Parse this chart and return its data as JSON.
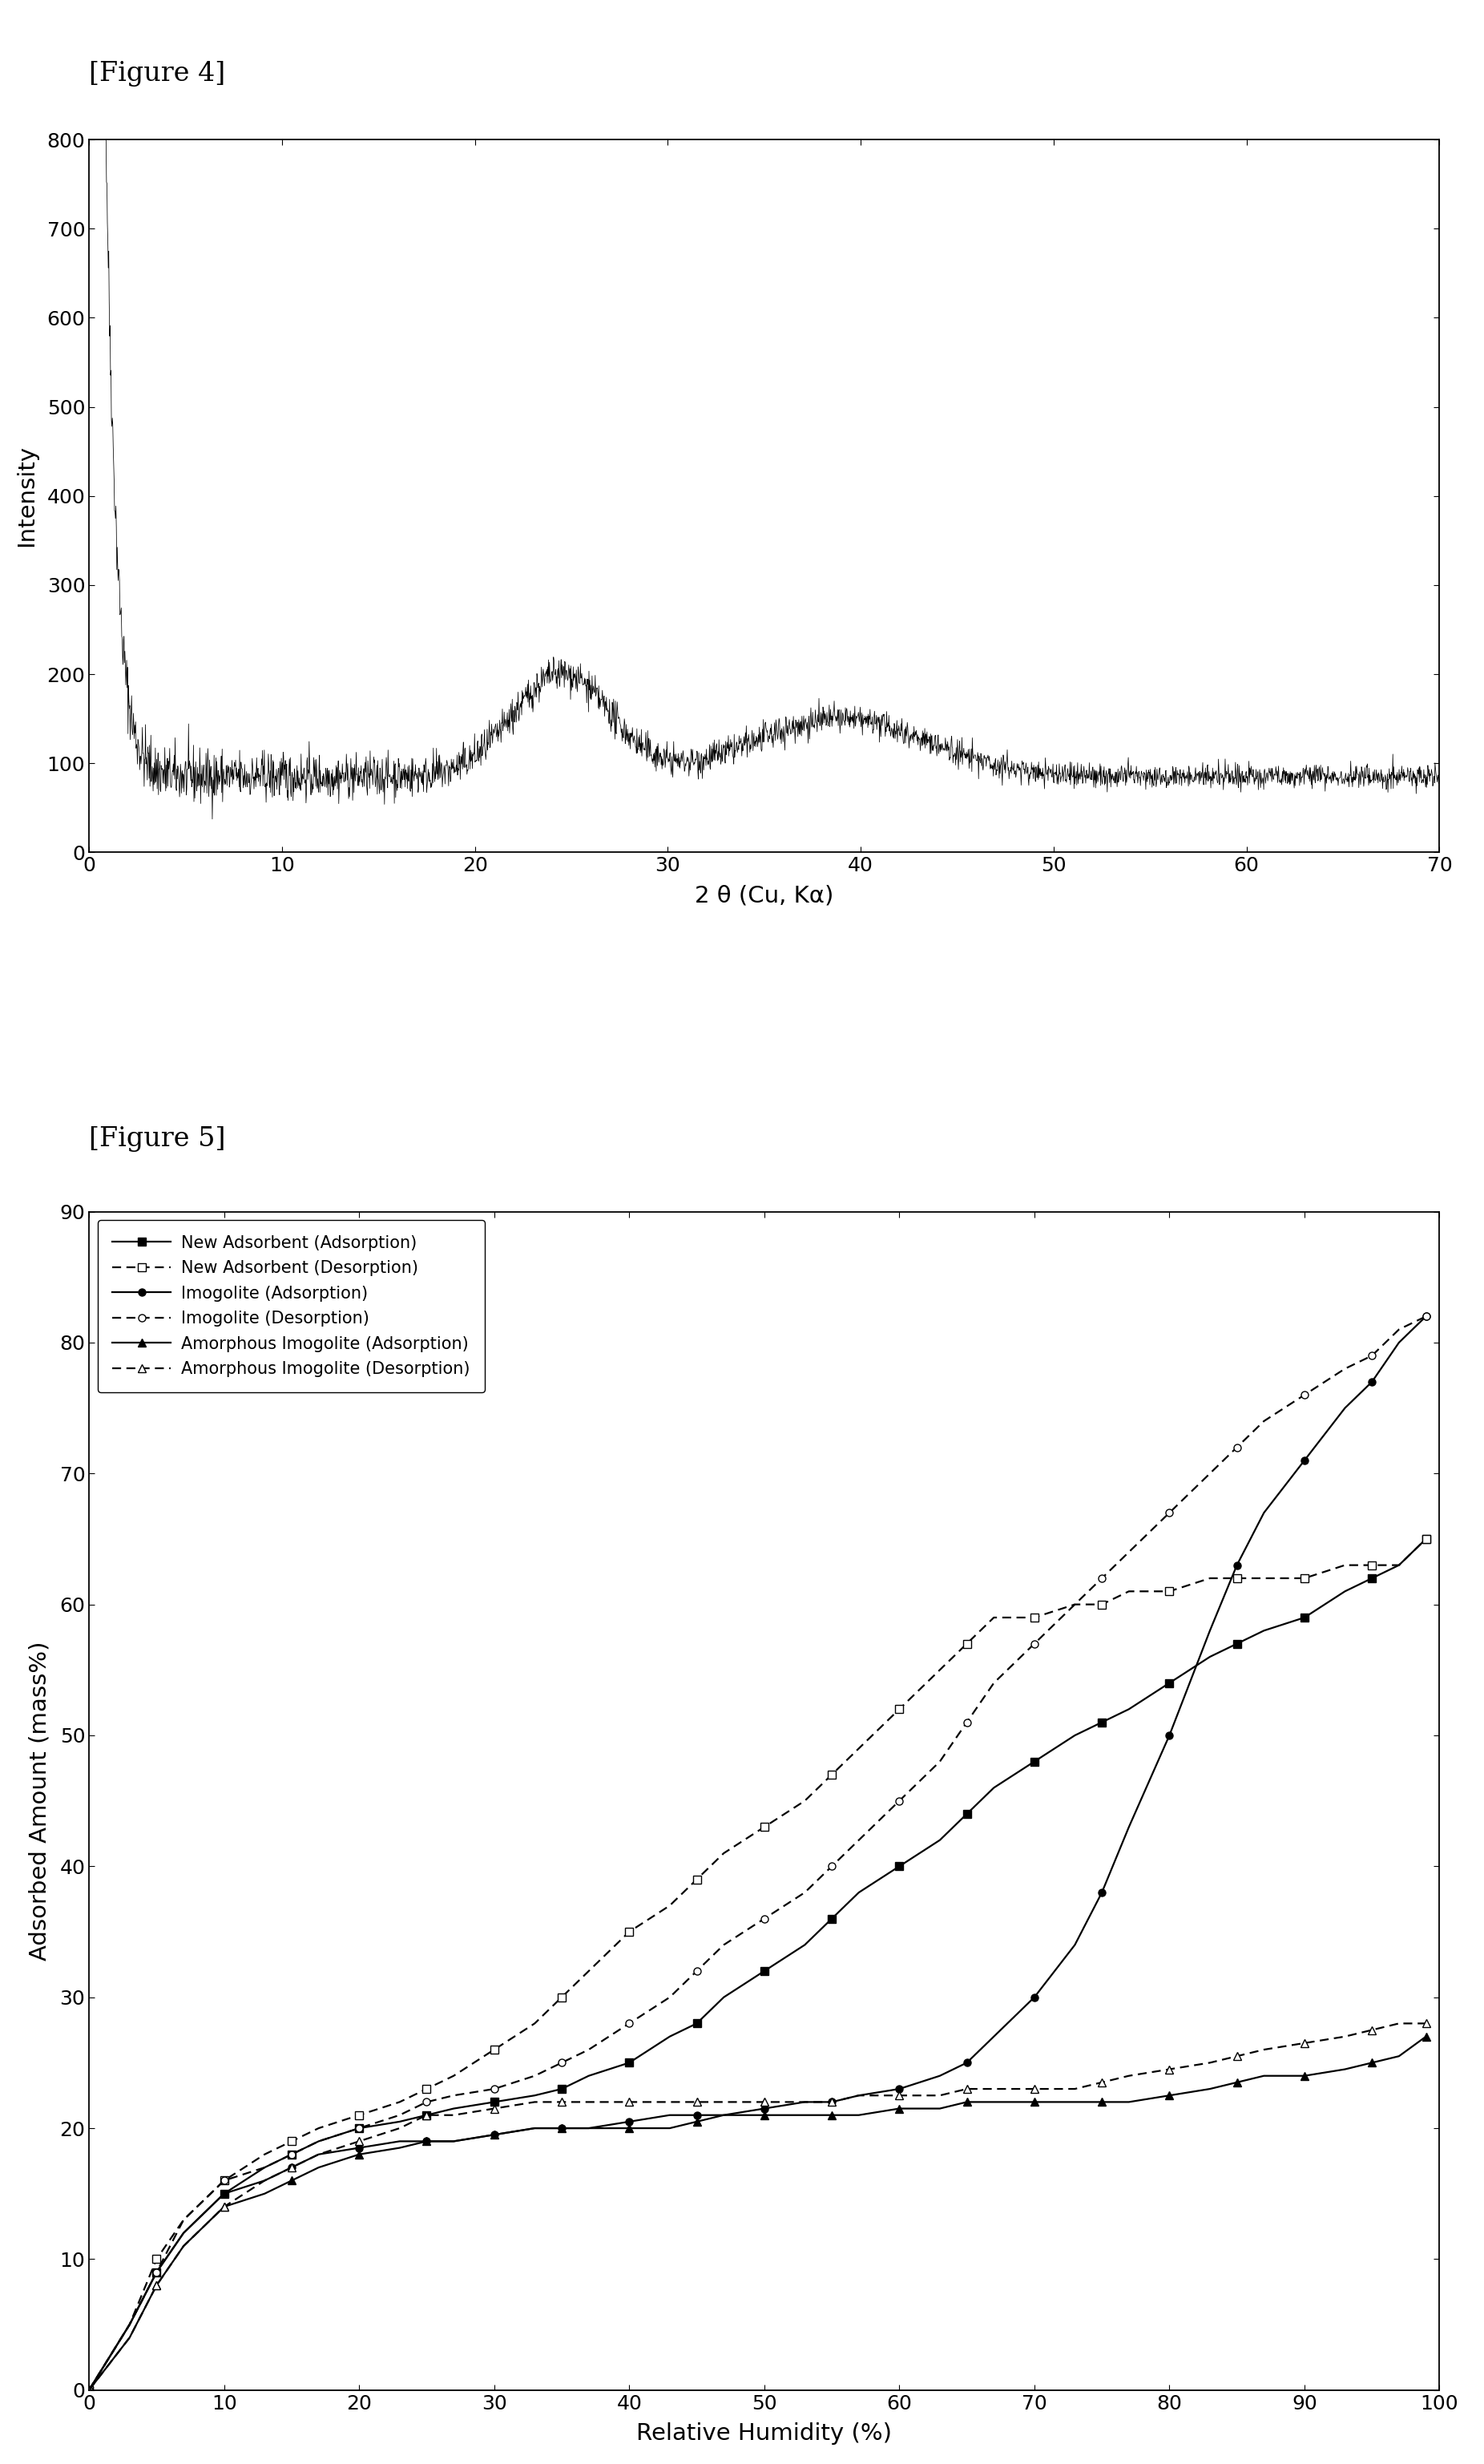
{
  "fig4_label": "[Figure 4]",
  "fig5_label": "[Figure 5]",
  "fig4": {
    "xlabel": "2 θ (Cu, Kα)",
    "ylabel": "Intensity",
    "xlim": [
      0,
      70
    ],
    "ylim": [
      0,
      800
    ],
    "yticks": [
      0,
      100,
      200,
      300,
      400,
      500,
      600,
      700,
      800
    ],
    "xticks": [
      0,
      10,
      20,
      30,
      40,
      50,
      60,
      70
    ]
  },
  "fig5": {
    "xlabel": "Relative Humidity (%)",
    "ylabel": "Adsorbed Amount (mass%)",
    "xlim": [
      0,
      100
    ],
    "ylim": [
      0,
      90
    ],
    "yticks": [
      0,
      10,
      20,
      30,
      40,
      50,
      60,
      70,
      80,
      90
    ],
    "xticks": [
      0,
      10,
      20,
      30,
      40,
      50,
      60,
      70,
      80,
      90,
      100
    ],
    "legend_entries": [
      "New Adsorbent (Adsorption)",
      "New Adsorbent (Desorption)",
      "Imogolite (Adsorption)",
      "Imogolite (Desorption)",
      "Amorphous Imogolite (Adsorption)",
      "Amorphous Imogolite (Desorption)"
    ]
  }
}
